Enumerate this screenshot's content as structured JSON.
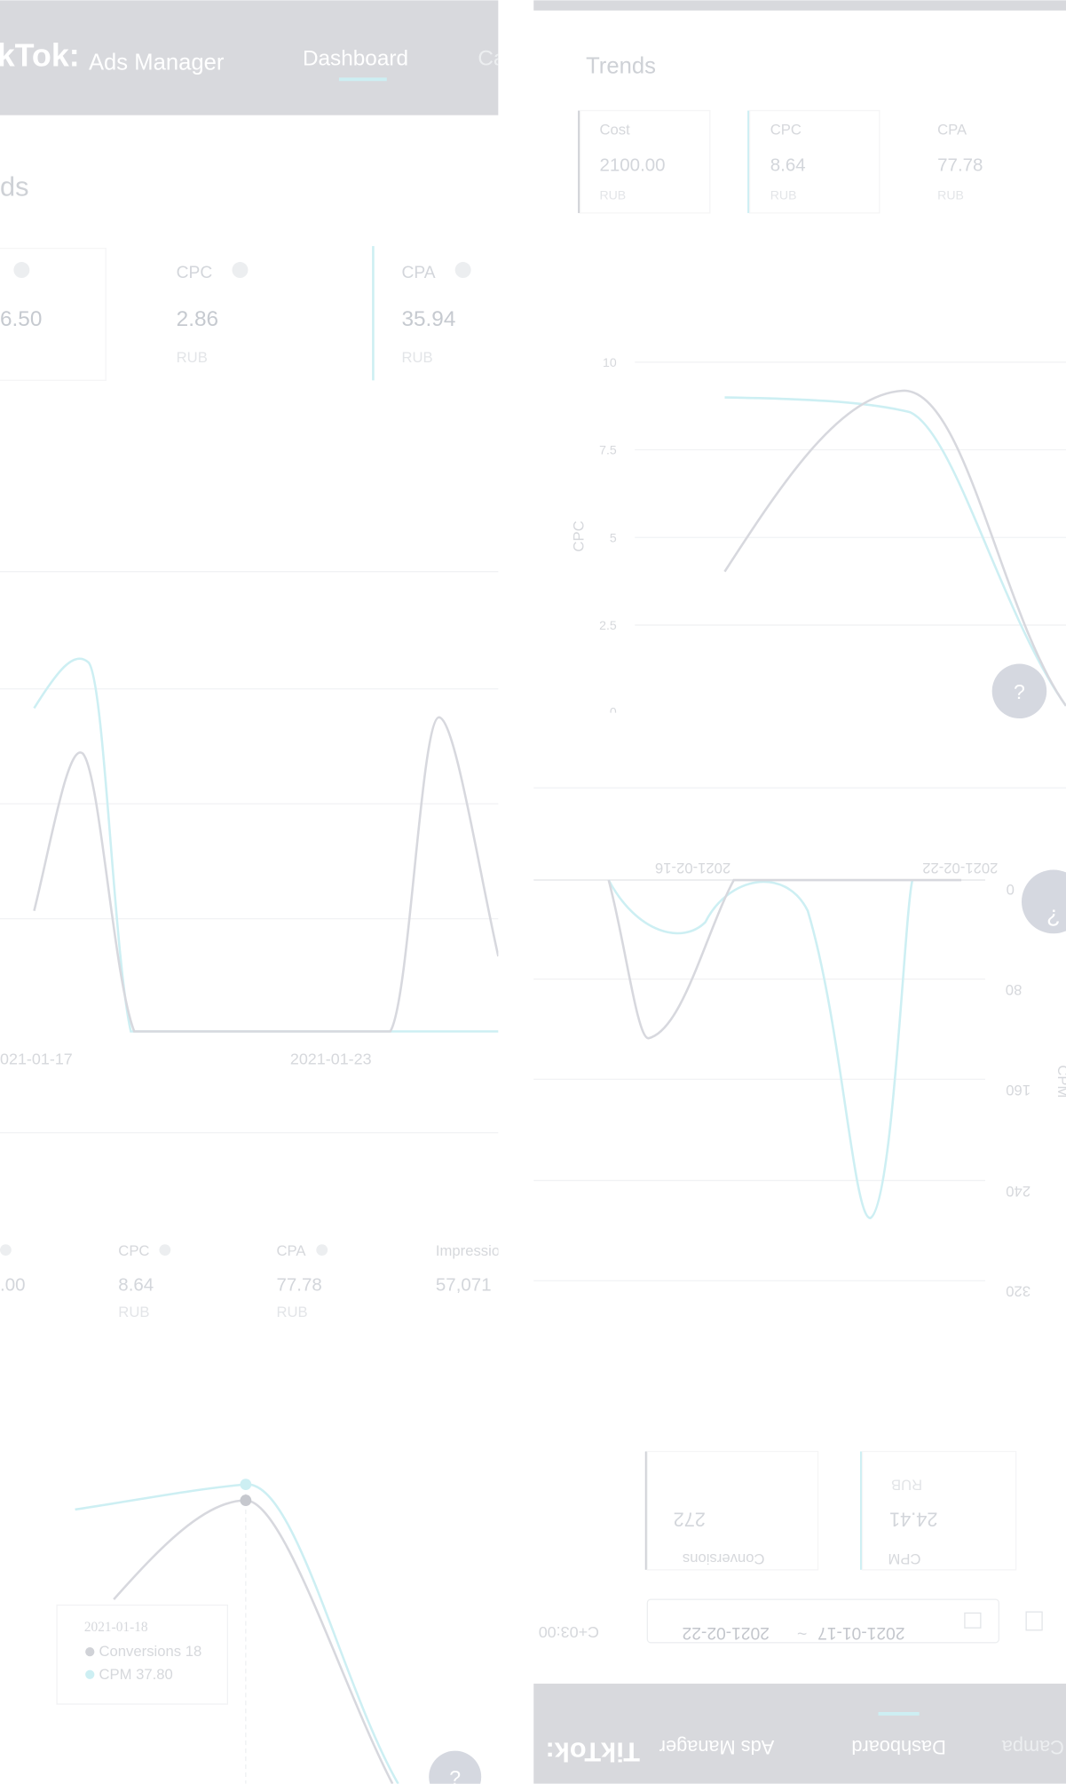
{
  "left": {
    "header": {
      "logo": "kTok:",
      "product": "Ads Manager",
      "nav": [
        "Dashboard",
        "Ca"
      ]
    },
    "title": "ds",
    "cards": [
      {
        "value": "6.50"
      },
      {
        "label": "CPC",
        "value": "2.86",
        "unit": "RUB"
      },
      {
        "label": "CPA",
        "value": "35.94",
        "unit": "RUB"
      }
    ],
    "chart": {
      "x_labels": [
        "021-01-17",
        "2021-01-23"
      ]
    },
    "summary": {
      "labels": [
        "CPC",
        "CPA",
        "Impressio"
      ],
      "values": [
        ".00",
        "8.64",
        "77.78",
        "57,071"
      ],
      "units": [
        "RUB",
        "RUB"
      ]
    },
    "tooltip": {
      "date": "2021-01-18",
      "rows": [
        "Conversions 18",
        "CPM 37.80"
      ]
    }
  },
  "right": {
    "title": "Trends",
    "cards": [
      {
        "label": "Cost",
        "value": "2100.00",
        "unit": "RUB"
      },
      {
        "label": "CPC",
        "value": "8.64",
        "unit": "RUB"
      },
      {
        "label": "CPA",
        "value": "77.78",
        "unit": "RUB"
      }
    ],
    "chart": {
      "y_label": "CPC",
      "y_ticks": [
        "10",
        "7.5",
        "5",
        "2.5",
        "0"
      ]
    },
    "flipped": {
      "x_labels": [
        "2021-02-16",
        "2021-02-22"
      ],
      "y_ticks": [
        "0",
        "80",
        "160",
        "240",
        "320"
      ],
      "y_label": "CPM",
      "cards": [
        {
          "label": "Conversions",
          "value": "272"
        },
        {
          "label": "CPM",
          "value": "24.41",
          "unit": "RUB"
        }
      ],
      "timezone": "C+03:00",
      "date_start": "2021-01-17",
      "date_sep": "~",
      "date_end": "2021-02-22",
      "header": {
        "logo": "TikTok:",
        "product": "Ads Manager",
        "nav": [
          "Dashboard",
          "Campa"
        ]
      }
    }
  }
}
